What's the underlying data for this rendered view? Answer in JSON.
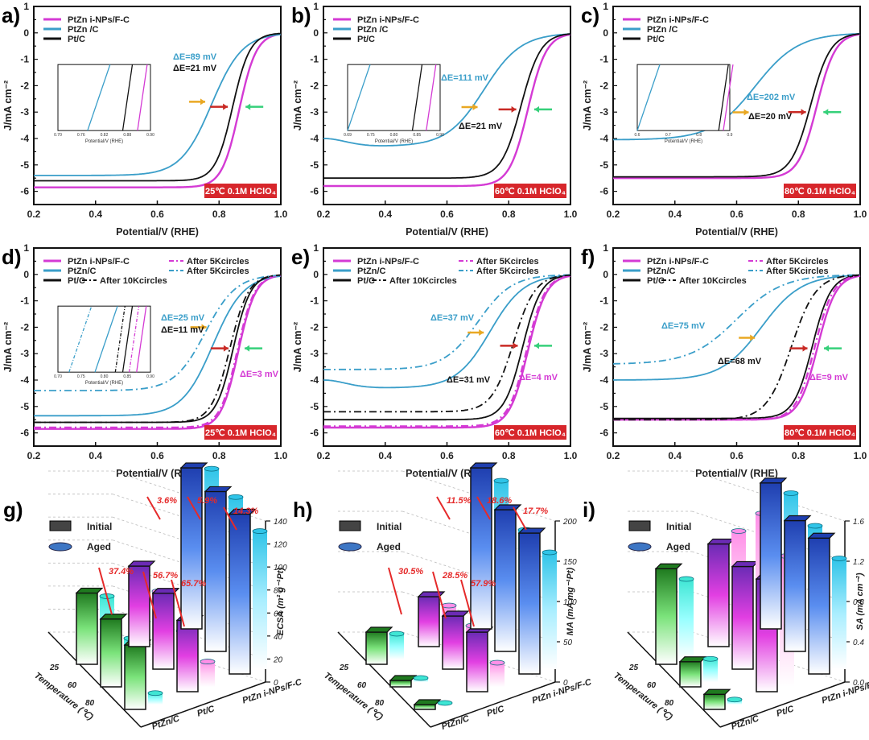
{
  "figure": {
    "colors": {
      "ptzn_inps": "#d43ad4",
      "ptzn_c": "#3a9ec9",
      "pt_c": "#111111",
      "badge": "#d7262b",
      "arrow_yellow": "#e9a823",
      "arrow_red": "#c92a25",
      "arrow_green": "#36d07a",
      "pct_red": "#e52a2a"
    }
  },
  "chart_data": [
    {
      "id": "a",
      "label": "a)",
      "type": "line",
      "xlabel": "Potential/V (RHE)",
      "ylabel": "J/mA cm⁻²",
      "xlim": [
        0.2,
        1.0
      ],
      "ylim": [
        -6.5,
        1
      ],
      "xticks": [
        "0.2",
        "0.4",
        "0.6",
        "0.8",
        "1.0"
      ],
      "yticks": [
        "1",
        "0",
        "-1",
        "-2",
        "-3",
        "-4",
        "-5",
        "-6"
      ],
      "condition": "25℃ 0.1M HClO₄",
      "legend": [
        "PtZn i-NPs/F-C",
        "PtZn /C",
        "Pt/C"
      ],
      "annotations": [
        {
          "text": "ΔE=89 mV",
          "color": "ptzn_c"
        },
        {
          "text": "ΔE=21 mV",
          "color": "pt_c"
        }
      ],
      "series": [
        {
          "name": "PtZn i-NPs/F-C",
          "style": "solid",
          "color": "ptzn_inps",
          "jl": -5.85,
          "e_half": 0.865,
          "k": 0.028
        },
        {
          "name": "PtZn /C",
          "style": "solid",
          "color": "ptzn_c",
          "jl": -5.4,
          "e_half": 0.776,
          "k": 0.05
        },
        {
          "name": "Pt/C",
          "style": "solid",
          "color": "pt_c",
          "jl": -5.6,
          "e_half": 0.844,
          "k": 0.028
        }
      ],
      "inset": {
        "xlabel": "Potential/V (RHE)",
        "xticks": [
          "0.70",
          "0.76",
          "0.82",
          "0.88",
          "0.90"
        ],
        "ylabel": "J/mA cm⁻²"
      },
      "arrows_y": -2.8
    },
    {
      "id": "b",
      "label": "b)",
      "type": "line",
      "xlabel": "Potential/V (RHE)",
      "ylabel": "J/mA cm⁻²",
      "xlim": [
        0.2,
        1.0
      ],
      "ylim": [
        -6.5,
        1
      ],
      "xticks": [
        "0.2",
        "0.4",
        "0.6",
        "0.8",
        "1.0"
      ],
      "yticks": [
        "1",
        "0",
        "-1",
        "-2",
        "-3",
        "-4",
        "-5",
        "-6"
      ],
      "condition": "60℃ 0.1M HClO₄",
      "legend": [
        "PtZn i-NPs/F-C",
        "PtZn /C",
        "Pt/C"
      ],
      "annotations": [
        {
          "text": "ΔE=111 mV",
          "color": "ptzn_c"
        },
        {
          "text": "ΔE=21 mV",
          "color": "pt_c"
        }
      ],
      "series": [
        {
          "name": "PtZn i-NPs/F-C",
          "style": "solid",
          "color": "ptzn_inps",
          "jl": -5.8,
          "e_half": 0.862,
          "k": 0.03
        },
        {
          "name": "PtZn /C",
          "style": "solid",
          "color": "ptzn_c",
          "jl": -4.3,
          "e_half": 0.72,
          "k": 0.06
        },
        {
          "name": "Pt/C",
          "style": "solid",
          "color": "pt_c",
          "jl": -5.5,
          "e_half": 0.84,
          "k": 0.032
        }
      ],
      "inset": {
        "xlabel": "Potential/V (RHE)",
        "xticks": [
          "0.69",
          "0.75",
          "0.80",
          "0.85",
          "0.90"
        ],
        "ylabel": "J/mA cm⁻²"
      },
      "arrows_y": -2.9
    },
    {
      "id": "c",
      "label": "c)",
      "type": "line",
      "xlabel": "Potential/V (RHE)",
      "ylabel": "J/mA cm⁻²",
      "xlim": [
        0.2,
        1.0
      ],
      "ylim": [
        -6.5,
        1
      ],
      "xticks": [
        "0.2",
        "0.4",
        "0.6",
        "0.8",
        "1.0"
      ],
      "yticks": [
        "1",
        "0",
        "-1",
        "-2",
        "-3",
        "-4",
        "-5",
        "-6"
      ],
      "condition": "80℃ 0.1M HClO₄",
      "legend": [
        "PtZn i-NPs/F-C",
        "PtZn /C",
        "Pt/C"
      ],
      "annotations": [
        {
          "text": "ΔE=202 mV",
          "color": "ptzn_c"
        },
        {
          "text": "ΔE=20 mV",
          "color": "pt_c"
        }
      ],
      "series": [
        {
          "name": "PtZn i-NPs/F-C",
          "style": "solid",
          "color": "ptzn_inps",
          "jl": -5.5,
          "e_half": 0.86,
          "k": 0.03
        },
        {
          "name": "PtZn /C",
          "style": "solid",
          "color": "ptzn_c",
          "jl": -4.05,
          "e_half": 0.66,
          "k": 0.07
        },
        {
          "name": "Pt/C",
          "style": "solid",
          "color": "pt_c",
          "jl": -5.45,
          "e_half": 0.84,
          "k": 0.032
        }
      ],
      "inset": {
        "xlabel": "Potential/V (RHE)",
        "xticks": [
          "0.6",
          "0.7",
          "0.8",
          "0.9"
        ],
        "ylabel": "J/mA cm⁻²"
      },
      "arrows_y": -3.0
    },
    {
      "id": "d",
      "label": "d)",
      "type": "line",
      "xlabel": "Potential/V (RHE)",
      "ylabel": "J/mA cm⁻²",
      "xlim": [
        0.2,
        1.0
      ],
      "ylim": [
        -6.5,
        1
      ],
      "xticks": [
        "0.2",
        "0.4",
        "0.6",
        "0.8",
        "1.0"
      ],
      "yticks": [
        "1",
        "0",
        "-1",
        "-2",
        "-3",
        "-4",
        "-5",
        "-6"
      ],
      "condition": "25℃ 0.1M HClO₄",
      "legend": [
        "PtZn i-NPs/F-C",
        "PtZn/C",
        "Pt/C",
        "After 5Kcircles",
        "After 5Kcircles",
        "After 10Kcircles"
      ],
      "annotations": [
        {
          "text": "ΔE=25 mV",
          "color": "ptzn_c"
        },
        {
          "text": "ΔE=11 mV",
          "color": "pt_c"
        },
        {
          "text": "ΔE=3 mV",
          "color": "ptzn_inps"
        }
      ],
      "series": [
        {
          "name": "PtZn i-NPs/F-C",
          "style": "solid",
          "color": "ptzn_inps",
          "jl": -5.85,
          "e_half": 0.862,
          "k": 0.028
        },
        {
          "name": "PtZn/C",
          "style": "solid",
          "color": "ptzn_c",
          "jl": -5.35,
          "e_half": 0.78,
          "k": 0.05
        },
        {
          "name": "Pt/C",
          "style": "solid",
          "color": "pt_c",
          "jl": -5.6,
          "e_half": 0.846,
          "k": 0.028
        },
        {
          "name": "PtZn i-NPs/F-C After 5Kcircles",
          "style": "dashdot",
          "color": "ptzn_inps",
          "jl": -5.8,
          "e_half": 0.859,
          "k": 0.028
        },
        {
          "name": "PtZn/C After 5Kcircles",
          "style": "dashdot",
          "color": "ptzn_c",
          "jl": -4.4,
          "e_half": 0.755,
          "k": 0.05
        },
        {
          "name": "Pt/C After 10Kcircles",
          "style": "dashdot",
          "color": "pt_c",
          "jl": -5.6,
          "e_half": 0.835,
          "k": 0.03
        }
      ],
      "inset": {
        "xlabel": "Potential/V (RHE)",
        "xticks": [
          "0.70",
          "0.75",
          "0.80",
          "0.85",
          "0.90"
        ],
        "ylabel": "J/mA cm⁻²"
      },
      "arrows_y": -2.8
    },
    {
      "id": "e",
      "label": "e)",
      "type": "line",
      "xlabel": "Potential/V (RHE)",
      "ylabel": "J/mA cm⁻²",
      "xlim": [
        0.2,
        1.0
      ],
      "ylim": [
        -6.5,
        1
      ],
      "xticks": [
        "0.2",
        "0.4",
        "0.6",
        "0.8",
        "1.0"
      ],
      "yticks": [
        "1",
        "0",
        "-1",
        "-2",
        "-3",
        "-4",
        "-5",
        "-6"
      ],
      "condition": "60℃ 0.1M HClO₄",
      "legend": [
        "PtZn i-NPs/F-C",
        "PtZn/C",
        "Pt/C",
        "After 5Kcircles",
        "After 5Kcircles",
        "After 10Kcircles"
      ],
      "annotations": [
        {
          "text": "ΔE=37 mV",
          "color": "ptzn_c"
        },
        {
          "text": "ΔE=31 mV",
          "color": "pt_c"
        },
        {
          "text": "ΔE=4 mV",
          "color": "ptzn_inps"
        }
      ],
      "series": [
        {
          "name": "PtZn i-NPs/F-C",
          "style": "solid",
          "color": "ptzn_inps",
          "jl": -5.8,
          "e_half": 0.862,
          "k": 0.03
        },
        {
          "name": "PtZn/C",
          "style": "solid",
          "color": "ptzn_c",
          "jl": -4.3,
          "e_half": 0.74,
          "k": 0.055
        },
        {
          "name": "Pt/C",
          "style": "solid",
          "color": "pt_c",
          "jl": -5.5,
          "e_half": 0.845,
          "k": 0.03
        },
        {
          "name": "PtZn i-NPs/F-C After 5Kcircles",
          "style": "dashdot",
          "color": "ptzn_inps",
          "jl": -5.75,
          "e_half": 0.858,
          "k": 0.03
        },
        {
          "name": "PtZn/C After 5Kcircles",
          "style": "dashdot",
          "color": "ptzn_c",
          "jl": -3.6,
          "e_half": 0.7,
          "k": 0.055
        },
        {
          "name": "Pt/C After 10Kcircles",
          "style": "dashdot",
          "color": "pt_c",
          "jl": -5.2,
          "e_half": 0.815,
          "k": 0.035
        }
      ],
      "arrows_y": -2.7
    },
    {
      "id": "f",
      "label": "f)",
      "type": "line",
      "xlabel": "Potential/V (RHE)",
      "ylabel": "J/mA cm⁻²",
      "xlim": [
        0.2,
        1.0
      ],
      "ylim": [
        -6.5,
        1
      ],
      "xticks": [
        "0.2",
        "0.4",
        "0.6",
        "0.8",
        "1.0"
      ],
      "yticks": [
        "1",
        "0",
        "-1",
        "-2",
        "-3",
        "-4",
        "-5",
        "-6"
      ],
      "condition": "80℃ 0.1M HClO₄",
      "legend": [
        "PtZn i-NPs/F-C",
        "PtZn/C",
        "Pt/C",
        "After 5Kcircles",
        "After 5Kcircles",
        "After 10Kcircles"
      ],
      "annotations": [
        {
          "text": "ΔE=75 mV",
          "color": "ptzn_c"
        },
        {
          "text": "ΔE=68 mV",
          "color": "pt_c"
        },
        {
          "text": "ΔE=9 mV",
          "color": "ptzn_inps"
        }
      ],
      "series": [
        {
          "name": "PtZn i-NPs/F-C",
          "style": "solid",
          "color": "ptzn_inps",
          "jl": -5.5,
          "e_half": 0.862,
          "k": 0.03
        },
        {
          "name": "PtZn/C",
          "style": "solid",
          "color": "ptzn_c",
          "jl": -4.0,
          "e_half": 0.68,
          "k": 0.065
        },
        {
          "name": "Pt/C",
          "style": "solid",
          "color": "pt_c",
          "jl": -5.45,
          "e_half": 0.845,
          "k": 0.03
        },
        {
          "name": "PtZn i-NPs/F-C After 5Kcircles",
          "style": "dashdot",
          "color": "ptzn_inps",
          "jl": -5.5,
          "e_half": 0.853,
          "k": 0.03
        },
        {
          "name": "PtZn/C After 5Kcircles",
          "style": "dashdot",
          "color": "ptzn_c",
          "jl": -3.4,
          "e_half": 0.6,
          "k": 0.075
        },
        {
          "name": "Pt/C After 10Kcircles",
          "style": "dashdot",
          "color": "pt_c",
          "jl": -5.5,
          "e_half": 0.777,
          "k": 0.04
        }
      ],
      "arrows_y": -2.8
    },
    {
      "id": "g",
      "label": "g)",
      "type": "bar3d",
      "zlabel": "ECSA (m² g⁻¹Pt)",
      "zlim": [
        0,
        140
      ],
      "zticks": [
        "0",
        "20",
        "40",
        "60",
        "80",
        "100",
        "120",
        "140"
      ],
      "xlabel": "Temperature (℃)",
      "temps": [
        "25",
        "60",
        "80"
      ],
      "catalysts": [
        "PtZn/C",
        "Pt/C",
        "PtZn i-NPs/F-C"
      ],
      "legend": [
        "Initial",
        "Aged"
      ],
      "initial": [
        [
          62,
          59,
          56
        ],
        [
          70,
          66,
          62
        ],
        [
          140,
          139,
          139
        ]
      ],
      "aged": [
        [
          55,
          38,
          10
        ],
        [
          44,
          29,
          22
        ],
        [
          135,
          130,
          120
        ]
      ],
      "loss_labels": [
        "3.6%",
        "5.9%",
        "14.3%",
        "37.4%",
        "56.7%",
        "65.7%"
      ]
    },
    {
      "id": "h",
      "label": "h)",
      "type": "bar3d",
      "zlabel": "MA (mA mg⁻¹Pt)",
      "zlim": [
        0,
        200
      ],
      "zticks": [
        "0",
        "50",
        "100",
        "150",
        "200"
      ],
      "xlabel": "Temperature (℃)",
      "temps": [
        "25",
        "60",
        "80"
      ],
      "catalysts": [
        "PtZn/C",
        "Pt/C",
        "PtZn i-NPs/F-C"
      ],
      "legend": [
        "Initial",
        "Aged"
      ],
      "initial": [
        [
          40,
          8,
          6
        ],
        [
          62,
          66,
          74
        ],
        [
          200,
          176,
          175
        ]
      ],
      "aged": [
        [
          32,
          5,
          2
        ],
        [
          45,
          48,
          30
        ],
        [
          178,
          145,
          145
        ]
      ],
      "loss_labels": [
        "11.5%",
        "18.6%",
        "17.7%",
        "30.5%",
        "28.5%",
        "57.9%"
      ]
    },
    {
      "id": "i",
      "label": "i)",
      "type": "bar3d",
      "zlabel": "SA (mA cm⁻²)",
      "zlim": [
        0,
        1.6
      ],
      "zticks": [
        "0.0",
        "0.4",
        "0.8",
        "1.2",
        "1.6"
      ],
      "xlabel": "Temperature (℃)",
      "temps": [
        "25",
        "60",
        "80"
      ],
      "catalysts": [
        "PtZn/C",
        "Pt/C",
        "PtZn i-NPs/F-C"
      ],
      "legend": [
        "Initial",
        "Aged"
      ],
      "initial": [
        [
          0.95,
          0.25,
          0.15
        ],
        [
          1.02,
          1.02,
          1.12
        ],
        [
          1.45,
          1.3,
          1.35
        ]
      ],
      "aged": [
        [
          0.8,
          0.23,
          0.05
        ],
        [
          1.1,
          1.5,
          1.3
        ],
        [
          1.3,
          1.2,
          1.1
        ]
      ],
      "loss_labels": []
    }
  ]
}
